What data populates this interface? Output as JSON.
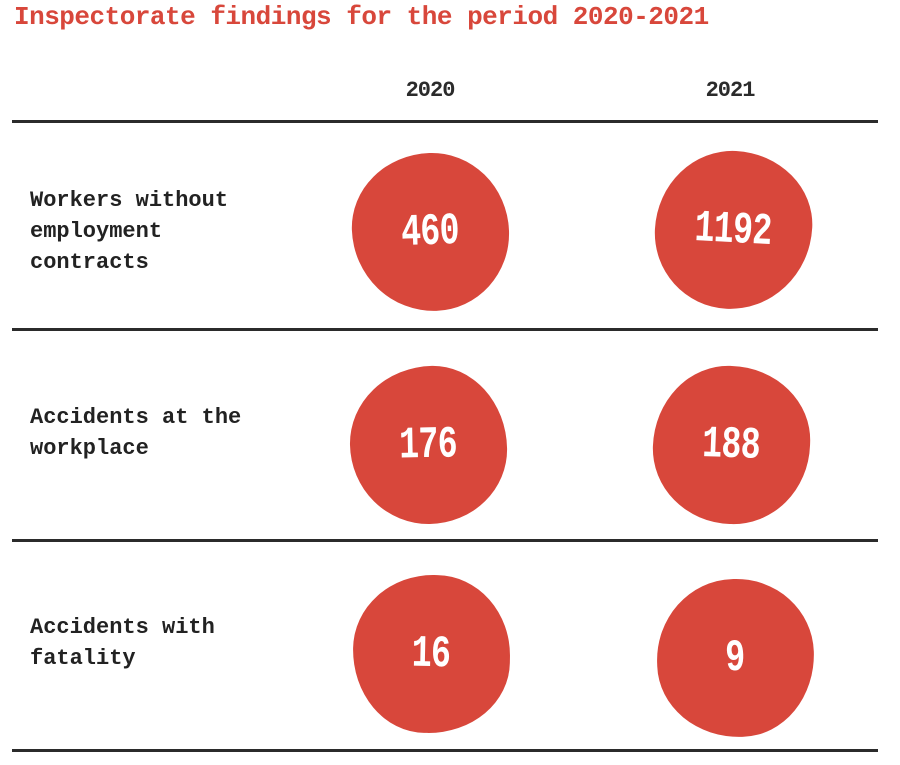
{
  "title": "Inspectorate findings for the period 2020-2021",
  "columns": [
    "2020",
    "2021"
  ],
  "rows": [
    {
      "label": "Workers without employment contracts",
      "values": [
        "460",
        "1192"
      ]
    },
    {
      "label": "Accidents at the workplace",
      "values": [
        "176",
        "188"
      ]
    },
    {
      "label": "Accidents with fatality",
      "values": [
        "16",
        "9"
      ]
    }
  ],
  "colors": {
    "accent_red": "#d8473b",
    "text_dark": "#2b2b2b",
    "line_color": "#2b2b2b",
    "value_white": "#ffffff"
  },
  "chart_data": {
    "type": "table",
    "title": "Inspectorate findings for the period 2020-2021",
    "columns": [
      "2020",
      "2021"
    ],
    "rows": [
      {
        "label": "Workers without employment contracts",
        "values": [
          460,
          1192
        ]
      },
      {
        "label": "Accidents at the workplace",
        "values": [
          176,
          188
        ]
      },
      {
        "label": "Accidents with fatality",
        "values": [
          16,
          9
        ]
      }
    ],
    "legend_position": "none",
    "grid": "horizontal-rules"
  }
}
